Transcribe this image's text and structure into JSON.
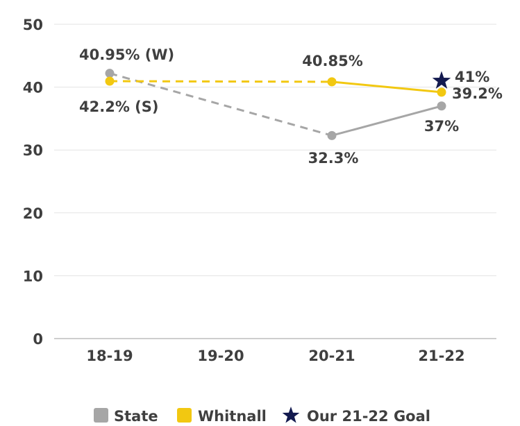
{
  "chart_data": {
    "type": "line",
    "categories": [
      "18-19",
      "19-20",
      "20-21",
      "21-22"
    ],
    "yticks": [
      "0",
      "10",
      "20",
      "30",
      "40",
      "50"
    ],
    "ylim": [
      0,
      50
    ],
    "grid": true,
    "legend_position": "bottom",
    "series": [
      {
        "name": "State",
        "color": "#a6a6a6",
        "points": [
          {
            "category": "18-19",
            "value": 42.2,
            "label": "42.2% (S)"
          },
          {
            "category": "20-21",
            "value": 32.3,
            "label": "32.3%"
          },
          {
            "category": "21-22",
            "value": 37,
            "label": "37%"
          }
        ]
      },
      {
        "name": "Whitnall",
        "color": "#f2c811",
        "points": [
          {
            "category": "18-19",
            "value": 40.95,
            "label": "40.95% (W)"
          },
          {
            "category": "20-21",
            "value": 40.85,
            "label": "40.85%"
          },
          {
            "category": "21-22",
            "value": 39.2,
            "label": "39.2%"
          }
        ]
      }
    ],
    "goal": {
      "name": "Our 21-22 Goal",
      "category": "21-22",
      "value": 41,
      "label": "41%",
      "color": "#131a4f",
      "icon": "star-icon"
    }
  }
}
